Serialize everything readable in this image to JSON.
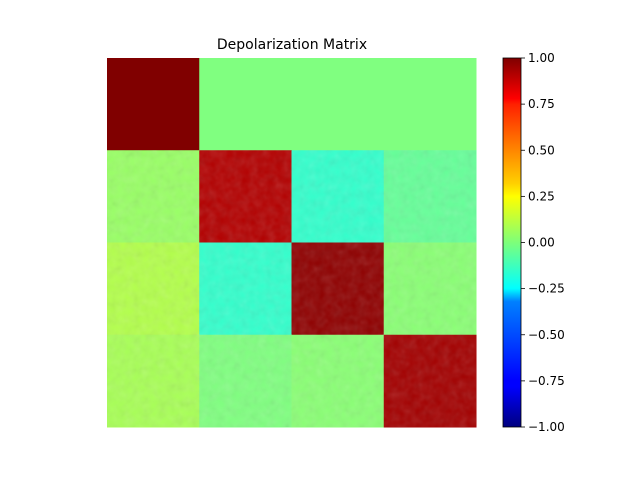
{
  "chart_data": {
    "type": "heatmap",
    "title": "Depolarization Matrix",
    "colormap": "jet",
    "rows": 4,
    "cols": 4,
    "values": [
      [
        1.0,
        0.0,
        0.0,
        0.0
      ],
      [
        0.05,
        0.9,
        -0.15,
        -0.05
      ],
      [
        0.1,
        -0.15,
        0.97,
        0.02
      ],
      [
        0.08,
        0.0,
        0.02,
        0.93
      ]
    ],
    "colorbar": {
      "range": [
        -1.0,
        1.0
      ],
      "ticks": [
        1.0,
        0.75,
        0.5,
        0.25,
        0.0,
        -0.25,
        -0.5,
        -0.75,
        -1.0
      ],
      "tick_labels": [
        "1.00",
        "0.75",
        "0.50",
        "0.25",
        "0.00",
        "−0.25",
        "−0.50",
        "−0.75",
        "−1.00"
      ]
    },
    "axes": "off"
  }
}
